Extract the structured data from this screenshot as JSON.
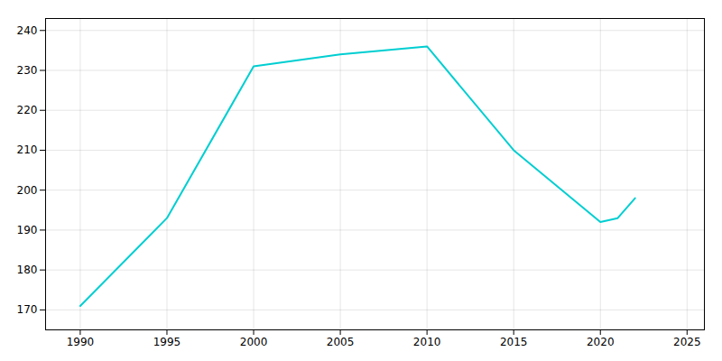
{
  "chart_data": {
    "type": "line",
    "x": [
      1990,
      1995,
      2000,
      2005,
      2010,
      2015,
      2020,
      2021,
      2022
    ],
    "values": [
      171,
      193,
      231,
      234,
      236,
      210,
      192,
      193,
      198
    ],
    "color": "#00CED1",
    "xlim": [
      1988,
      2026
    ],
    "ylim": [
      165,
      243
    ],
    "xticks": [
      1990,
      1995,
      2000,
      2005,
      2010,
      2015,
      2020,
      2025
    ],
    "yticks": [
      170,
      180,
      190,
      200,
      210,
      220,
      230,
      240
    ],
    "grid": true
  }
}
